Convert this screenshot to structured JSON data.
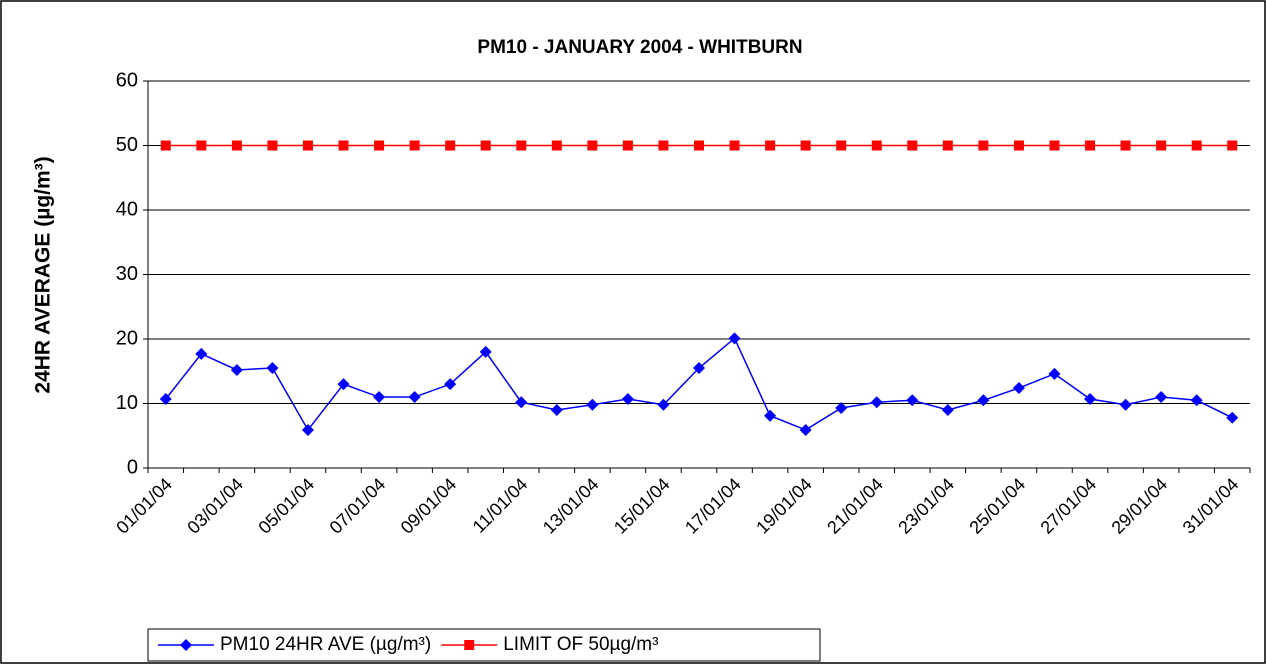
{
  "chart_data": {
    "type": "line",
    "title": "PM10 - JANUARY 2004 - WHITBURN",
    "y_label": "24HR AVERAGE (µg/m³)",
    "categories": [
      "01/01/04",
      null,
      "03/01/04",
      null,
      "05/01/04",
      null,
      "07/01/04",
      null,
      "09/01/04",
      null,
      "11/01/04",
      null,
      "13/01/04",
      null,
      "15/01/04",
      null,
      "17/01/04",
      null,
      "19/01/04",
      null,
      "21/01/04",
      null,
      "23/01/04",
      null,
      "25/01/04",
      null,
      "27/01/04",
      null,
      "29/01/04",
      null,
      "31/01/04"
    ],
    "series": [
      {
        "name": "PM10 24HR AVE (µg/m³)",
        "color": "#0000ff",
        "marker": "diamond",
        "values": [
          10.7,
          17.7,
          15.2,
          15.5,
          5.9,
          13,
          11,
          11,
          13,
          18,
          10.2,
          9,
          9.8,
          10.7,
          9.8,
          15.5,
          20.1,
          8.1,
          5.9,
          9.3,
          10.2,
          10.5,
          9,
          10.5,
          12.4,
          14.6,
          10.7,
          9.8,
          11,
          10.5,
          7.8
        ]
      },
      {
        "name": "LIMIT OF 50µg/m³",
        "color": "#ff0000",
        "marker": "square",
        "values": [
          50,
          50,
          50,
          50,
          50,
          50,
          50,
          50,
          50,
          50,
          50,
          50,
          50,
          50,
          50,
          50,
          50,
          50,
          50,
          50,
          50,
          50,
          50,
          50,
          50,
          50,
          50,
          50,
          50,
          50,
          50
        ]
      }
    ],
    "ylim": [
      0,
      60
    ],
    "yticks": [
      0,
      10,
      20,
      30,
      40,
      50,
      60
    ],
    "grid": true,
    "legend": "bottom-left"
  }
}
